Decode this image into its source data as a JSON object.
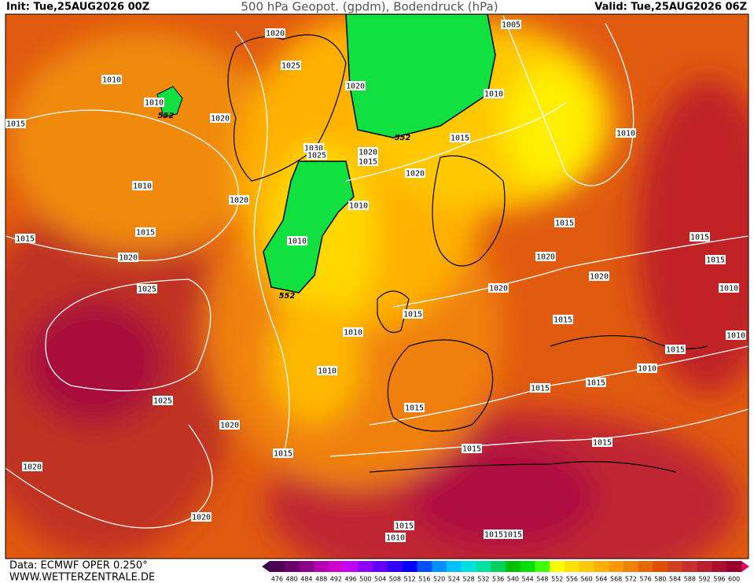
{
  "header": {
    "init": "Init: Tue,25AUG2026 00Z",
    "title": "500 hPa Geopot. (gpdm), Bodendruck (hPa)",
    "valid": "Valid: Tue,25AUG2026 06Z"
  },
  "footer": {
    "data": "Data: ECMWF OPER 0.250°",
    "site": "WWW.WETTERZENTRALE.DE"
  },
  "isobar_labels": [
    "1020",
    "1005",
    "1025",
    "1010",
    "1020",
    "1010",
    "1010",
    "1020",
    "1015",
    "1015",
    "1010",
    "1030",
    "1025",
    "1020",
    "1015",
    "1020",
    "1010",
    "1020",
    "1010",
    "1015",
    "1015",
    "1015",
    "1015",
    "1010",
    "1020",
    "1020",
    "1015",
    "1020",
    "1025",
    "1020",
    "1010",
    "1015",
    "1015",
    "1010",
    "1010",
    "1015",
    "1010",
    "1010",
    "1015",
    "1015",
    "1025",
    "1015",
    "1020",
    "1015",
    "1015",
    "1015",
    "1020",
    "1020",
    "1015",
    "1010",
    "1015",
    "1015"
  ],
  "contour_labels": [
    "552",
    "552",
    "552"
  ],
  "colorbar": {
    "labels": [
      476,
      480,
      484,
      488,
      492,
      496,
      500,
      504,
      508,
      512,
      516,
      520,
      524,
      528,
      532,
      536,
      540,
      544,
      548,
      552,
      556,
      560,
      564,
      568,
      572,
      576,
      580,
      584,
      588,
      592,
      596,
      600
    ],
    "colors": [
      "#4b0055",
      "#6a006a",
      "#8b008b",
      "#b000b0",
      "#d000d0",
      "#c000ff",
      "#9000ff",
      "#6000ff",
      "#3000ff",
      "#0000ff",
      "#0050ff",
      "#0090ff",
      "#00c0ff",
      "#00e0e0",
      "#00e0a0",
      "#00d060",
      "#00c000",
      "#00e000",
      "#40ff00",
      "#ffff00",
      "#ffe000",
      "#ffc800",
      "#ffb000",
      "#ff9800",
      "#f08000",
      "#e86800",
      "#e05000",
      "#d04020",
      "#c83030",
      "#b82030",
      "#a81030",
      "#980030"
    ]
  }
}
